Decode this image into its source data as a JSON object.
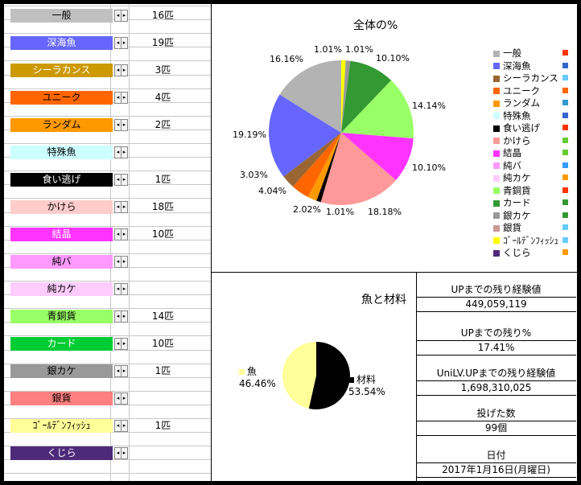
{
  "categories": [
    {
      "label": "一般",
      "count": "16匹",
      "color": "#c0c0c0",
      "text_color": "#000000"
    },
    {
      "label": "深海魚",
      "count": "19匹",
      "color": "#6666ff",
      "text_color": "#ffffff"
    },
    {
      "label": "シーラカンス",
      "count": "3匹",
      "color": "#cc9900",
      "text_color": "#ffffff"
    },
    {
      "label": "ユニーク",
      "count": "4匹",
      "color": "#ff6600",
      "text_color": "#000000"
    },
    {
      "label": "ランダム",
      "count": "2匹",
      "color": "#ff9900",
      "text_color": "#000000"
    },
    {
      "label": "特殊魚",
      "count": "",
      "color": "#ccffff",
      "text_color": "#000000"
    },
    {
      "label": "食い逃げ",
      "count": "1匹",
      "color": "#000000",
      "text_color": "#ffffff"
    },
    {
      "label": "かけら",
      "count": "18匹",
      "color": "#ffcccc",
      "text_color": "#000000"
    },
    {
      "label": "結晶",
      "count": "10匹",
      "color": "#ff33ff",
      "text_color": "#ffffff"
    },
    {
      "label": "純バ",
      "count": "",
      "color": "#ff99ff",
      "text_color": "#000000"
    },
    {
      "label": "純カケ",
      "count": "",
      "color": "#ffccff",
      "text_color": "#000000"
    },
    {
      "label": "青銅貨",
      "count": "14匹",
      "color": "#99ff66",
      "text_color": "#000000"
    },
    {
      "label": "カード",
      "count": "10匹",
      "color": "#00cc33",
      "text_color": "#ffffff"
    },
    {
      "label": "銀カケ",
      "count": "1匹",
      "color": "#999999",
      "text_color": "#000000"
    },
    {
      "label": "銀貨",
      "count": "",
      "color": "#ff8080",
      "text_color": "#000000"
    },
    {
      "label": "ｺﾞｰﾙﾃﾞﾝﾌｨｯｼｭ",
      "count": "1匹",
      "color": "#ffff99",
      "text_color": "#000000"
    },
    {
      "label": "くじら",
      "count": "",
      "color": "#4d2a7a",
      "text_color": "#ffffff"
    }
  ],
  "spin_glyphs": {
    "left": "◂",
    "right": "▸"
  },
  "chart_data": [
    {
      "type": "pie",
      "title": "全体の%",
      "legend_position": "right",
      "categories": [
        "一般",
        "深海魚",
        "シーラカンス",
        "ユニーク",
        "ランダム",
        "特殊魚",
        "食い逃げ",
        "かけら",
        "結晶",
        "純バ",
        "純カケ",
        "青銅貨",
        "カード",
        "銀カケ",
        "銀貨",
        "ゴールデンフィッシュ",
        "くじら"
      ],
      "values": [
        16,
        19,
        3,
        4,
        2,
        0,
        1,
        18,
        10,
        0,
        0,
        14,
        10,
        1,
        0,
        1,
        0
      ],
      "colors": [
        "#b3b3b3",
        "#6666ff",
        "#996633",
        "#ff6600",
        "#ff9900",
        "#ccffff",
        "#000000",
        "#ff9999",
        "#ff33ff",
        "#ff99ff",
        "#ffccff",
        "#99ff66",
        "#339933",
        "#999999",
        "#cc9999",
        "#ffff00",
        "#4d2a7a"
      ],
      "legend_markers": [
        "#ff3300",
        "#3366cc",
        "#66ccff",
        "#ff6600",
        "#3399cc",
        "#3366cc",
        "#ff3300",
        "#66cc33",
        "#66cc33",
        "#3399ff",
        "#ff9900",
        "#ff3300",
        "#339933",
        "#339933",
        "#66ccff",
        "#66ccff",
        "#ff9900"
      ],
      "slice_labels": [
        {
          "text": "1.01%",
          "side": "top"
        },
        {
          "text": "1.01%",
          "side": "top"
        },
        {
          "text": "10.10%",
          "side": "right"
        },
        {
          "text": "14.14%",
          "side": "right"
        },
        {
          "text": "10.10%",
          "side": "right"
        },
        {
          "text": "18.18%",
          "side": "bottom"
        },
        {
          "text": "1.01%",
          "side": "bottom"
        },
        {
          "text": "2.02%",
          "side": "bottom"
        },
        {
          "text": "4.04%",
          "side": "left"
        },
        {
          "text": "3.03%",
          "side": "left"
        },
        {
          "text": "19.19%",
          "side": "left"
        },
        {
          "text": "16.16%",
          "side": "top"
        }
      ]
    },
    {
      "type": "pie",
      "title": "魚と材料",
      "categories": [
        "魚",
        "材料"
      ],
      "values": [
        46.46,
        53.54
      ],
      "colors": [
        "#ffff99",
        "#000000"
      ],
      "legend_markers": [
        "#ffff99",
        "#000000"
      ],
      "slice_labels": [
        {
          "name": "魚",
          "value": "46.46%"
        },
        {
          "name": "材料",
          "value": "53.54%"
        }
      ]
    }
  ],
  "stats": [
    {
      "label": "UPまでの残り経験値",
      "value": "449,059,119"
    },
    {
      "label": "UPまでの残り%",
      "value": "17.41%"
    },
    {
      "label": "UniLV.UPまでの残り経験値",
      "value": "1,698,310,025"
    },
    {
      "label": "投げた数",
      "value": "99個"
    },
    {
      "label": "日付",
      "value": "2017年1月16日(月曜日)"
    }
  ]
}
